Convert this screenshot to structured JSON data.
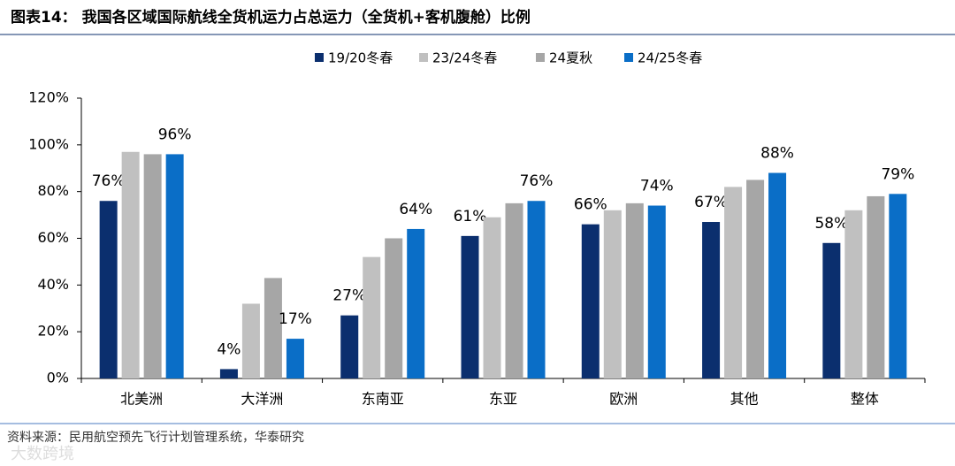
{
  "chart_data": {
    "type": "bar",
    "title": "图表14：  我国各区域国际航线全货机运力占总运力（全货机+客机腹舱）比例",
    "source": "资料来源：民用航空预先飞行计划管理系统，华泰研究",
    "watermark": "大数跨境",
    "categories": [
      "北美洲",
      "大洋洲",
      "东南亚",
      "东亚",
      "欧洲",
      "其他",
      "整体"
    ],
    "series": [
      {
        "name": "19/20冬春",
        "color": "#0b2f6e",
        "values": [
          76,
          4,
          27,
          61,
          66,
          67,
          58
        ],
        "value_labels": [
          "76%",
          "4%",
          "27%",
          "61%",
          "66%",
          "67%",
          "58%"
        ]
      },
      {
        "name": "23/24冬春",
        "color": "#c0c0c0",
        "values": [
          97,
          32,
          52,
          69,
          72,
          82,
          72
        ]
      },
      {
        "name": "24夏秋",
        "color": "#a6a6a6",
        "values": [
          96,
          43,
          60,
          75,
          75,
          85,
          78
        ]
      },
      {
        "name": "24/25冬春",
        "color": "#0a6ec7",
        "values": [
          96,
          17,
          64,
          76,
          74,
          88,
          79
        ],
        "value_labels": [
          "96%",
          "17%",
          "64%",
          "76%",
          "74%",
          "88%",
          "79%"
        ]
      }
    ],
    "ylim": [
      0,
      120
    ],
    "yticks": [
      {
        "value": 0,
        "label": "0%"
      },
      {
        "value": 20,
        "label": "20%"
      },
      {
        "value": 40,
        "label": "40%"
      },
      {
        "value": 60,
        "label": "60%"
      },
      {
        "value": 80,
        "label": "80%"
      },
      {
        "value": 100,
        "label": "100%"
      },
      {
        "value": 120,
        "label": "120%"
      }
    ],
    "legend": "top",
    "grid": false
  }
}
